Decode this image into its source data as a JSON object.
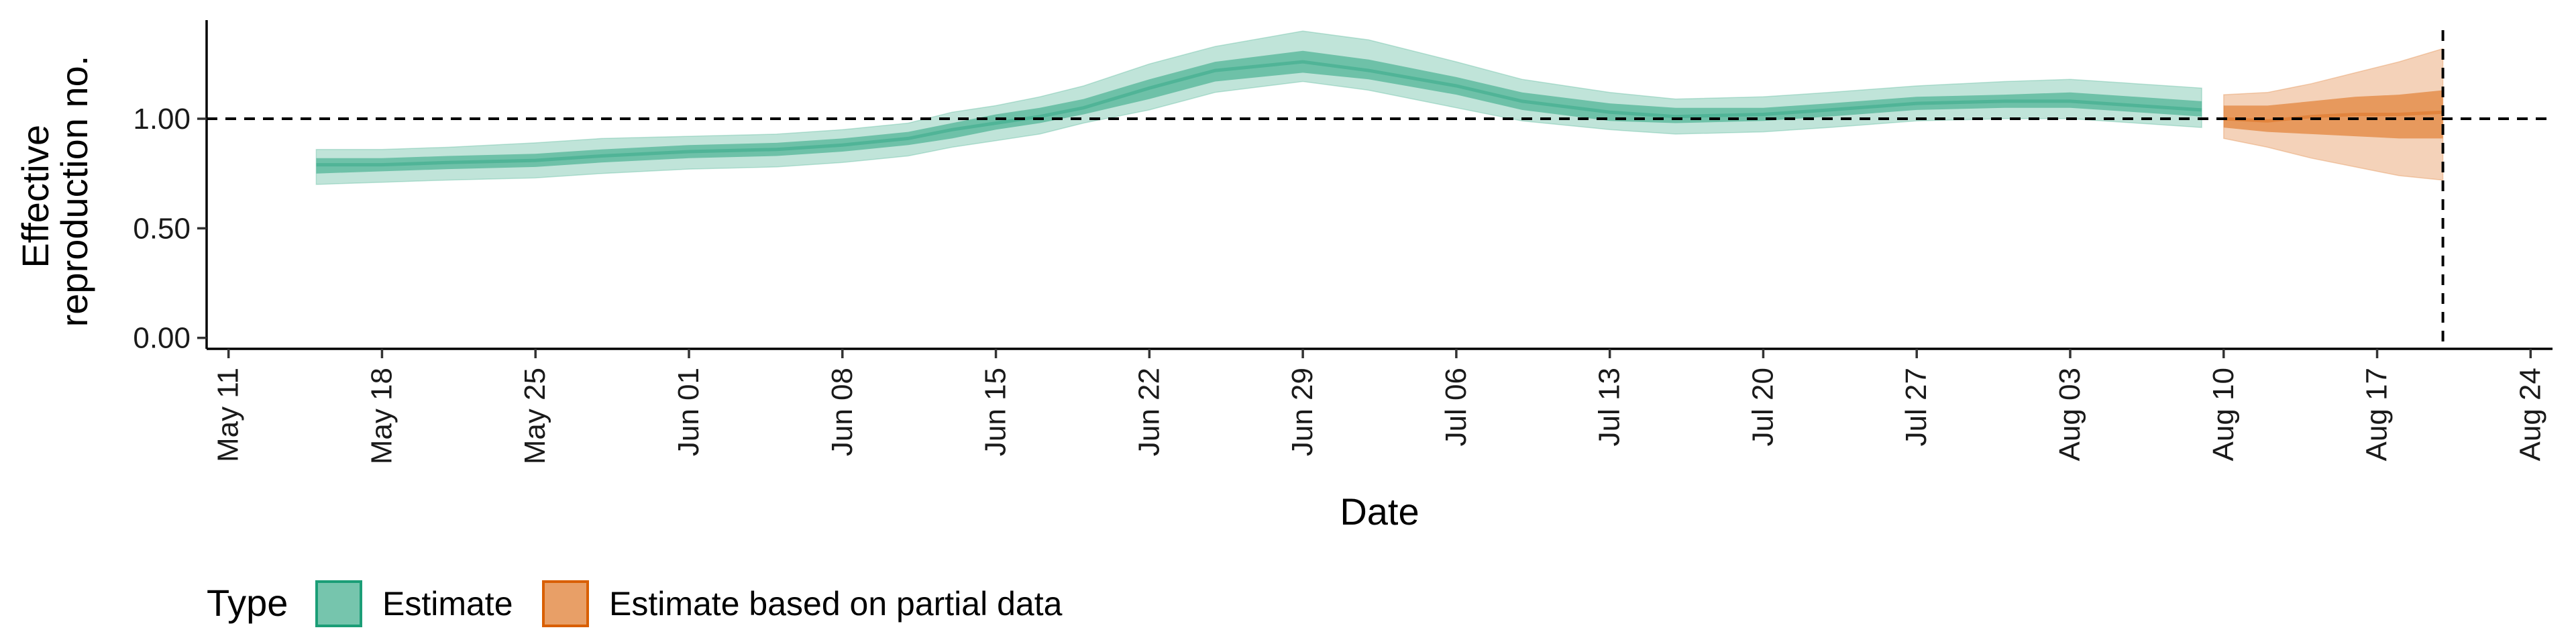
{
  "chart_data": {
    "type": "area",
    "xlabel": "Date",
    "ylabel_lines": [
      "Effective",
      "reproduction no."
    ],
    "x_ticks": [
      "2021-05-11",
      "2021-05-18",
      "2021-05-25",
      "2021-06-01",
      "2021-06-08",
      "2021-06-15",
      "2021-06-22",
      "2021-06-29",
      "2021-07-06",
      "2021-07-13",
      "2021-07-20",
      "2021-07-27",
      "2021-08-03",
      "2021-08-10",
      "2021-08-17",
      "2021-08-24"
    ],
    "x_tick_labels": [
      "May 11",
      "May 18",
      "May 25",
      "Jun 01",
      "Jun 08",
      "Jun 15",
      "Jun 22",
      "Jun 29",
      "Jul 06",
      "Jul 13",
      "Jul 20",
      "Jul 27",
      "Aug 03",
      "Aug 10",
      "Aug 17",
      "Aug 24"
    ],
    "xlim": [
      "2021-05-10",
      "2021-08-25"
    ],
    "y_ticks": [
      0,
      0.5,
      1.0
    ],
    "y_tick_labels": [
      "0.00",
      "0.50",
      "1.00"
    ],
    "ylim": [
      -0.05,
      1.45
    ],
    "hline": 1.0,
    "vline": "2021-08-20",
    "legend": {
      "title": "Type",
      "position": "bottom-left"
    },
    "series": [
      {
        "name": "Estimate",
        "color": "#1b9e77",
        "x": [
          "2021-05-15",
          "2021-05-18",
          "2021-05-21",
          "2021-05-25",
          "2021-05-28",
          "2021-06-01",
          "2021-06-05",
          "2021-06-08",
          "2021-06-11",
          "2021-06-13",
          "2021-06-15",
          "2021-06-17",
          "2021-06-19",
          "2021-06-22",
          "2021-06-25",
          "2021-06-29",
          "2021-07-02",
          "2021-07-06",
          "2021-07-09",
          "2021-07-13",
          "2021-07-16",
          "2021-07-20",
          "2021-07-23",
          "2021-07-27",
          "2021-07-31",
          "2021-08-03",
          "2021-08-06",
          "2021-08-09"
        ],
        "median": [
          0.79,
          0.79,
          0.8,
          0.81,
          0.83,
          0.85,
          0.86,
          0.88,
          0.91,
          0.95,
          0.98,
          1.01,
          1.05,
          1.14,
          1.22,
          1.26,
          1.22,
          1.15,
          1.08,
          1.03,
          1.01,
          1.02,
          1.04,
          1.07,
          1.08,
          1.08,
          1.06,
          1.04
        ],
        "lower50": [
          0.75,
          0.76,
          0.77,
          0.78,
          0.8,
          0.82,
          0.83,
          0.85,
          0.88,
          0.91,
          0.95,
          0.98,
          1.02,
          1.09,
          1.17,
          1.21,
          1.18,
          1.11,
          1.04,
          0.99,
          0.98,
          0.99,
          1.01,
          1.04,
          1.05,
          1.05,
          1.03,
          1.01
        ],
        "upper50": [
          0.82,
          0.82,
          0.83,
          0.84,
          0.86,
          0.88,
          0.89,
          0.91,
          0.94,
          0.98,
          1.02,
          1.05,
          1.09,
          1.18,
          1.26,
          1.31,
          1.27,
          1.19,
          1.12,
          1.07,
          1.05,
          1.05,
          1.07,
          1.1,
          1.11,
          1.12,
          1.1,
          1.08
        ],
        "lower90": [
          0.7,
          0.71,
          0.72,
          0.73,
          0.75,
          0.77,
          0.78,
          0.8,
          0.83,
          0.87,
          0.9,
          0.93,
          0.98,
          1.04,
          1.12,
          1.17,
          1.13,
          1.05,
          0.99,
          0.95,
          0.93,
          0.94,
          0.96,
          0.99,
          1.0,
          1.0,
          0.98,
          0.96
        ],
        "upper90": [
          0.86,
          0.86,
          0.87,
          0.89,
          0.91,
          0.92,
          0.93,
          0.95,
          0.98,
          1.03,
          1.06,
          1.1,
          1.15,
          1.25,
          1.33,
          1.4,
          1.36,
          1.26,
          1.18,
          1.12,
          1.09,
          1.1,
          1.12,
          1.15,
          1.17,
          1.18,
          1.16,
          1.14
        ]
      },
      {
        "name": "Estimate based on partial data",
        "color": "#d95f02",
        "x": [
          "2021-08-10",
          "2021-08-12",
          "2021-08-14",
          "2021-08-16",
          "2021-08-18",
          "2021-08-20"
        ],
        "median": [
          1.0,
          0.99,
          1.01,
          1.02,
          1.02,
          1.03
        ],
        "lower50": [
          0.96,
          0.94,
          0.93,
          0.92,
          0.91,
          0.91
        ],
        "upper50": [
          1.06,
          1.06,
          1.08,
          1.1,
          1.11,
          1.13
        ],
        "lower90": [
          0.91,
          0.87,
          0.82,
          0.78,
          0.74,
          0.72
        ],
        "upper90": [
          1.11,
          1.12,
          1.16,
          1.21,
          1.26,
          1.32
        ]
      }
    ]
  }
}
